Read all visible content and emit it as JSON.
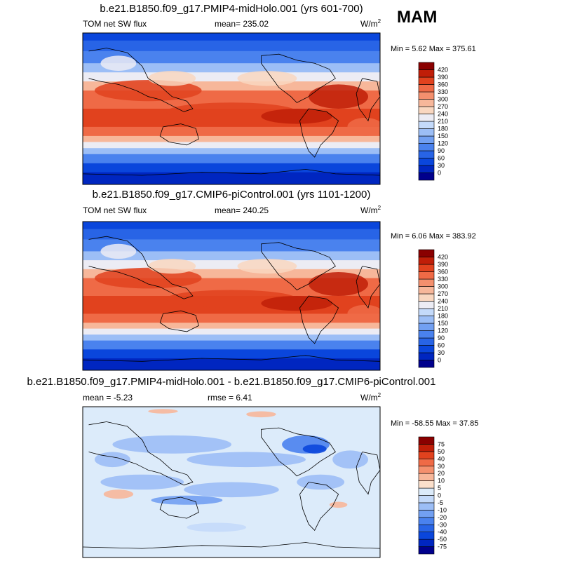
{
  "season": "MAM",
  "chart_data": [
    {
      "type": "heatmap",
      "title": "b.e21.B1850.f09_g17.PMIP4-midHolo.001 (yrs 601-700)",
      "variable": "TOM net SW flux",
      "stat": "mean= 235.02",
      "units": "W/m",
      "units_exp": "2",
      "min": "5.62",
      "max": "375.61",
      "minmax_text": "Min =   5.62 Max = 375.61",
      "colorbar": {
        "levels": [
          "0",
          "30",
          "60",
          "90",
          "120",
          "150",
          "180",
          "210",
          "240",
          "270",
          "300",
          "330",
          "360",
          "390",
          "420"
        ],
        "colors": [
          "#00008c",
          "#0026c0",
          "#0a46dc",
          "#2864e6",
          "#4a82ee",
          "#72a0f2",
          "#9cbef6",
          "#c4dafa",
          "#ececf4",
          "#f9d7c0",
          "#f7b79a",
          "#f4906e",
          "#ef6a46",
          "#e1421e",
          "#c01e08",
          "#8a0000"
        ]
      }
    },
    {
      "type": "heatmap",
      "title": "b.e21.B1850.f09_g17.CMIP6-piControl.001 (yrs 1101-1200)",
      "variable": "TOM net SW flux",
      "stat": "mean= 240.25",
      "units": "W/m",
      "units_exp": "2",
      "min": "6.06",
      "max": "383.92",
      "minmax_text": "Min =   6.06 Max = 383.92",
      "colorbar": {
        "levels": [
          "0",
          "30",
          "60",
          "90",
          "120",
          "150",
          "180",
          "210",
          "240",
          "270",
          "300",
          "330",
          "360",
          "390",
          "420"
        ],
        "colors": [
          "#00008c",
          "#0026c0",
          "#0a46dc",
          "#2864e6",
          "#4a82ee",
          "#72a0f2",
          "#9cbef6",
          "#c4dafa",
          "#ececf4",
          "#f9d7c0",
          "#f7b79a",
          "#f4906e",
          "#ef6a46",
          "#e1421e",
          "#c01e08",
          "#8a0000"
        ]
      }
    },
    {
      "type": "heatmap",
      "title": "b.e21.B1850.f09_g17.PMIP4-midHolo.001 - b.e21.B1850.f09_g17.CMIP6-piControl.001",
      "stat_mean": "mean =   -5.23",
      "stat_rmse": "rmse =    6.41",
      "units": "W/m",
      "units_exp": "2",
      "min": "-58.55",
      "max": "37.85",
      "minmax_text": "Min = -58.55 Max =  37.85",
      "colorbar": {
        "levels": [
          "-75",
          "-50",
          "-40",
          "-30",
          "-20",
          "-10",
          "-5",
          "0",
          "5",
          "10",
          "20",
          "30",
          "40",
          "50",
          "75"
        ],
        "colors": [
          "#00008c",
          "#0026c0",
          "#0a46dc",
          "#2864e6",
          "#4a82ee",
          "#72a0f2",
          "#9cbef6",
          "#c4dafa",
          "#dcebfa",
          "#fbe0cc",
          "#f7b79a",
          "#f4906e",
          "#ef6a46",
          "#e1421e",
          "#c01e08",
          "#8a0000"
        ]
      }
    }
  ]
}
